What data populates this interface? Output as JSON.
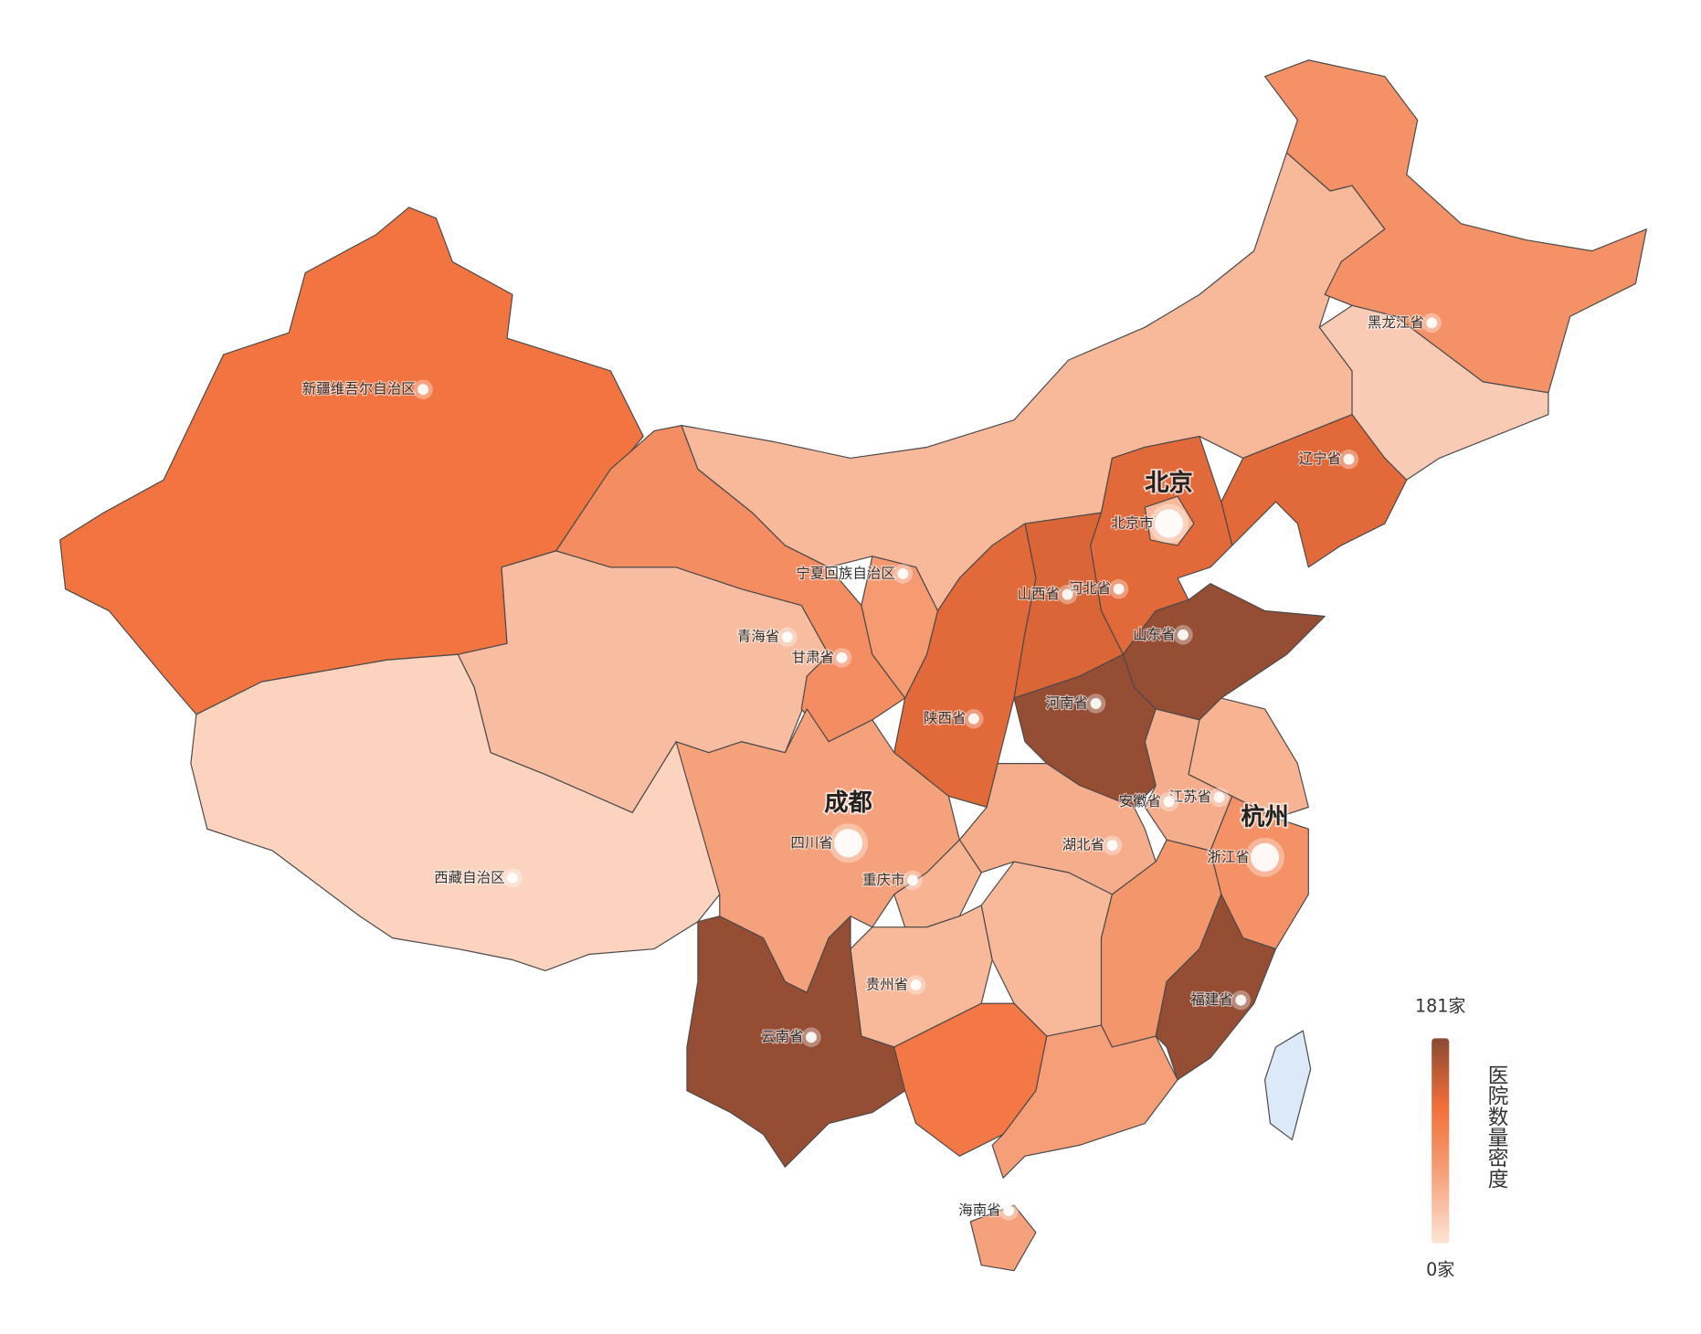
{
  "regions": [
    {
      "name": "新疆维吾尔自治区",
      "value": 115
    },
    {
      "name": "西藏自治区",
      "value": 15
    },
    {
      "name": "青海省",
      "value": 35
    },
    {
      "name": "甘肃省",
      "value": 85
    },
    {
      "name": null,
      "value": 40
    },
    {
      "name": "黑龙江省",
      "value": 80
    },
    {
      "name": null,
      "value": 22
    },
    {
      "name": "辽宁省",
      "value": 130
    },
    {
      "name": "河北省",
      "value": 130
    },
    {
      "name": "北京市",
      "value": 40,
      "city": "北京"
    },
    {
      "name": "山西省",
      "value": 135
    },
    {
      "name": "陕西省",
      "value": 130
    },
    {
      "name": "宁夏回族自治区",
      "value": 70
    },
    {
      "name": "山东省",
      "value": 175
    },
    {
      "name": "河南省",
      "value": 175
    },
    {
      "name": "江苏省",
      "value": 45
    },
    {
      "name": "安徽省",
      "value": 50
    },
    {
      "name": "浙江省",
      "value": 80,
      "city": "杭州"
    },
    {
      "name": "湖北省",
      "value": 50
    },
    {
      "name": "四川省",
      "value": 60,
      "city": "成都"
    },
    {
      "name": "重庆市",
      "value": 45
    },
    {
      "name": "贵州省",
      "value": 40
    },
    {
      "name": "云南省",
      "value": 175
    },
    {
      "name": null,
      "value": 40
    },
    {
      "name": null,
      "value": 75
    },
    {
      "name": "福建省",
      "value": 175
    },
    {
      "name": null,
      "value": 110
    },
    {
      "name": null,
      "value": 65
    },
    {
      "name": "海南省",
      "value": 60
    },
    {
      "name": null,
      "value": null
    }
  ],
  "visual_map": {
    "min": {
      "value": 0,
      "label": "0家"
    },
    "max": {
      "value": 181,
      "label": "181家"
    },
    "text": "医院数量密度",
    "colors": [
      "#fde3d4",
      "#f5a27c",
      "#f26f3a",
      "#8b4a33"
    ]
  },
  "no_data_color": "#dbe9f9"
}
